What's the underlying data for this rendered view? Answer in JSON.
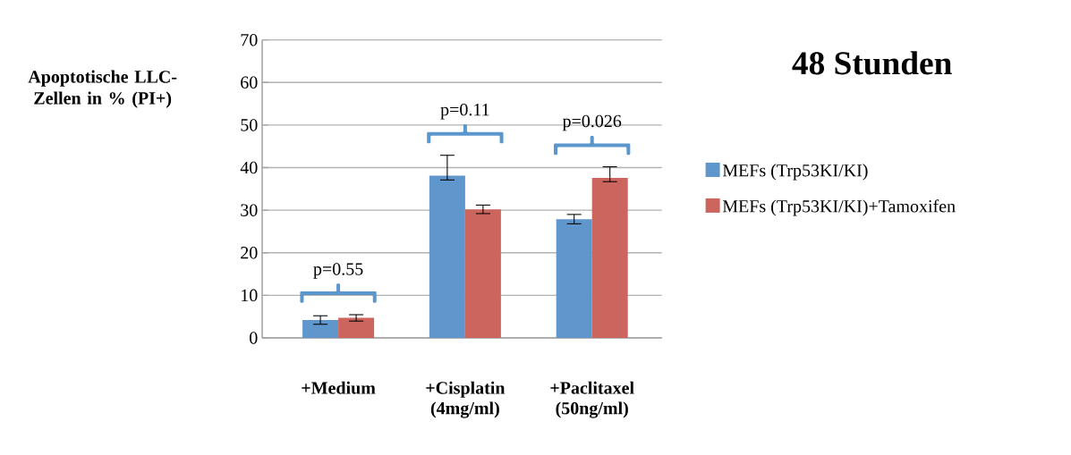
{
  "chart_data": {
    "type": "bar",
    "title": "48 Stunden",
    "ylabel": "Apoptotische LLC-Zellen in % (PI+)",
    "categories": [
      "+Medium",
      "+Cisplatin (4mg/ml)",
      "+Paclitaxel (50ng/ml)"
    ],
    "series": [
      {
        "name": "MEFs (Trp53KI/KI)",
        "color": "#5f96cb",
        "values": [
          4.2,
          38.1,
          27.9
        ],
        "errors": [
          1.0,
          [
            37.1,
            42.9
          ],
          1.1
        ]
      },
      {
        "name": "MEFs (Trp53KI/KI)+Tamoxifen",
        "color": "#cc655d",
        "values": [
          4.7,
          30.2,
          37.6
        ],
        "errors": [
          0.75,
          1.0,
          [
            36.7,
            40.2
          ]
        ]
      }
    ],
    "ylim": [
      0,
      70
    ],
    "yticks": [
      0,
      10,
      20,
      30,
      40,
      50,
      60,
      70
    ],
    "grid": "y",
    "legend": "right",
    "annotations": [
      "p=0.55",
      "p=0.11",
      "p=0.026"
    ]
  }
}
